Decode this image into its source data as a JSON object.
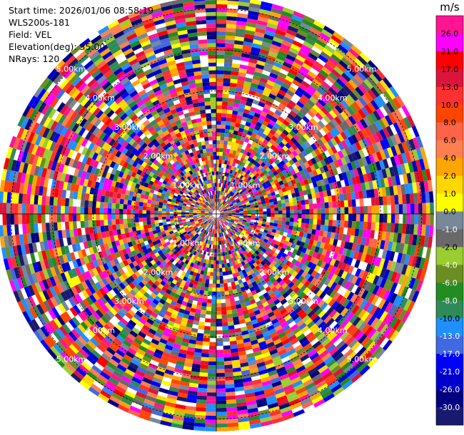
{
  "header": {
    "start_time": "Start time: 2026/01/06 08:58:19",
    "instrument": "WLS200s-181",
    "field": "Field: VEL",
    "elevation": "Elevation(deg): 35.00",
    "nrays": "NRays: 120"
  },
  "chart_data": {
    "type": "heatmap",
    "projection": "polar",
    "field": "VEL",
    "elevation_deg": 35.0,
    "n_rays": 120,
    "range_rings_km": [
      1,
      2,
      3,
      4,
      5
    ],
    "ring_labels": [
      "1.00km",
      "2.00km",
      "3.00km",
      "4.00km",
      "5.00km"
    ],
    "max_range_km": 5.3,
    "colorbar": {
      "unit": "m/s",
      "tick_labels": [
        "26.0",
        "21.0",
        "17.0",
        "13.0",
        "10.0",
        "8.0",
        "6.0",
        "4.0",
        "2.0",
        "1.0",
        "0.0",
        "-1.0",
        "-2.0",
        "-4.0",
        "-6.0",
        "-8.0",
        "-10.0",
        "-13.0",
        "-17.0",
        "-21.0",
        "-26.0",
        "-30.0"
      ],
      "colors": [
        "#ff1493",
        "#ff00ff",
        "#ff0000",
        "#dc143c",
        "#ff3030",
        "#ff4500",
        "#ff6347",
        "#ff7f50",
        "#ffa500",
        "#ffd700",
        "#ffff00",
        "#778899",
        "#696969",
        "#9acd32",
        "#6b8e23",
        "#228b22",
        "#2e8b57",
        "#1e90ff",
        "#4169e1",
        "#0000ff",
        "#0000cd",
        "#000080",
        "#191970"
      ]
    }
  }
}
